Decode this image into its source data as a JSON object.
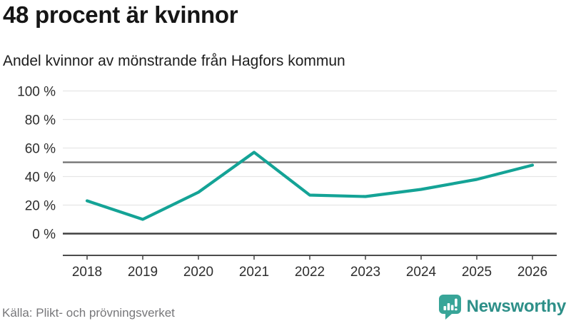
{
  "header": {
    "title": "48 procent är kvinnor",
    "subtitle": "Andel kvinnor av mönstrande från Hagfors kommun"
  },
  "chart_data": {
    "type": "line",
    "title": "48 procent är kvinnor",
    "subtitle": "Andel kvinnor av mönstrande från Hagfors kommun",
    "categories": [
      "2018",
      "2019",
      "2020",
      "2021",
      "2022",
      "2023",
      "2024",
      "2025",
      "2026"
    ],
    "series": [
      {
        "name": "Andel kvinnor av mönstrande (%)",
        "values": [
          23,
          10,
          29,
          57,
          27,
          26,
          31,
          38,
          48
        ]
      }
    ],
    "ylim": [
      0,
      100
    ],
    "ytick_step": 20,
    "ytick_suffix": " %",
    "reference_line": 50,
    "grid": true,
    "legend": "none"
  },
  "footer": {
    "source": "Källa: Plikt- och prövningsverket",
    "brand": "Newsworthy"
  },
  "colors": {
    "line": "#14a396",
    "grid": "#e6e6e6",
    "grid_zero": "#404040",
    "reference": "#6f6f6f",
    "axis": "#4c4c4c",
    "label": "#2e2e2e",
    "logo_icon": "#38a598",
    "logo_text": "#2d8f88"
  }
}
